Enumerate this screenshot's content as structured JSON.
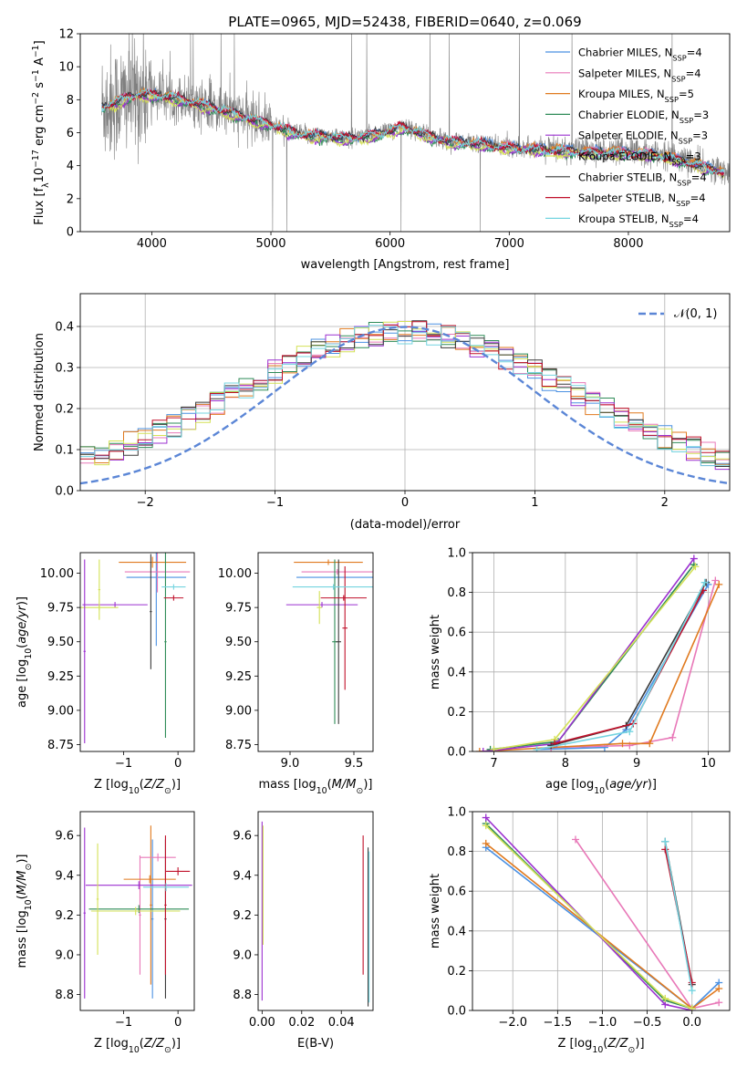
{
  "title": "PLATE=0965, MJD=52438, FIBERID=0640, z=0.069",
  "colors": {
    "Chabrier MILES": "#4a90e2",
    "Salpeter MILES": "#e878b8",
    "Kroupa MILES": "#e07a1f",
    "Chabrier ELODIE": "#2e8b57",
    "Salpeter ELODIE": "#9b30d0",
    "Kroupa ELODIE": "#d4e157",
    "Chabrier STELIB": "#3a3a3a",
    "Salpeter STELIB": "#c0102a",
    "Kroupa STELIB": "#74d4e0"
  },
  "chart_data": [
    {
      "id": "spectrum",
      "type": "line",
      "xlabel": "wavelength [Angstrom, rest frame]",
      "ylabel": "Flux [f_λ10^-17 erg cm^-2 s^-1 A^-1]",
      "xlim": [
        3400,
        8850
      ],
      "ylim": [
        0,
        12
      ],
      "xticks": [
        4000,
        5000,
        6000,
        7000,
        8000
      ],
      "yticks": [
        0,
        2,
        4,
        6,
        8,
        10,
        12
      ],
      "grid": false,
      "legend_position": "top-right",
      "legend": [
        "Chabrier MILES, N_SSP=4",
        "Salpeter MILES, N_SSP=4",
        "Kroupa MILES, N_SSP=5",
        "Chabrier ELODIE, N_SSP=3",
        "Salpeter ELODIE, N_SSP=3",
        "Kroupa ELODIE, N_SSP=3",
        "Chabrier STELIB, N_SSP=4",
        "Salpeter STELIB, N_SSP=4",
        "Kroupa STELIB, N_SSP=4"
      ],
      "data_color": "#808080",
      "data_range": [
        3580,
        8850
      ],
      "model_range": [
        3580,
        8800
      ],
      "continuum": [
        [
          3580,
          7.6
        ],
        [
          3700,
          7.9
        ],
        [
          3800,
          8.2
        ],
        [
          3900,
          8.4
        ],
        [
          4000,
          8.35
        ],
        [
          4100,
          8.3
        ],
        [
          4200,
          8.15
        ],
        [
          4300,
          8.0
        ],
        [
          4400,
          7.8
        ],
        [
          4500,
          7.6
        ],
        [
          4600,
          7.4
        ],
        [
          4700,
          7.2
        ],
        [
          4800,
          6.95
        ],
        [
          4900,
          6.75
        ],
        [
          5000,
          6.55
        ],
        [
          5100,
          6.3
        ],
        [
          5200,
          6.0
        ],
        [
          5300,
          5.9
        ],
        [
          5400,
          5.85
        ],
        [
          5500,
          5.8
        ],
        [
          5600,
          5.7
        ],
        [
          5700,
          5.75
        ],
        [
          5800,
          5.85
        ],
        [
          5900,
          6.0
        ],
        [
          6000,
          6.15
        ],
        [
          6100,
          6.4
        ],
        [
          6200,
          6.2
        ],
        [
          6300,
          5.9
        ],
        [
          6400,
          5.7
        ],
        [
          6500,
          5.55
        ],
        [
          6600,
          5.45
        ],
        [
          6700,
          5.4
        ],
        [
          6800,
          5.35
        ],
        [
          6900,
          5.25
        ],
        [
          7000,
          5.2
        ],
        [
          7200,
          5.1
        ],
        [
          7400,
          5.0
        ],
        [
          7600,
          4.95
        ],
        [
          7800,
          4.9
        ],
        [
          8000,
          4.85
        ],
        [
          8200,
          4.8
        ],
        [
          8400,
          4.5
        ],
        [
          8600,
          4.1
        ],
        [
          8800,
          3.7
        ]
      ]
    },
    {
      "id": "residuals",
      "type": "histogram",
      "xlabel": "(data-model)/error",
      "ylabel": "Normed distribution",
      "xlim": [
        -2.5,
        2.5
      ],
      "ylim": [
        0,
        0.48
      ],
      "xticks": [
        -2,
        -1,
        0,
        1,
        2
      ],
      "yticks": [
        0.0,
        0.1,
        0.2,
        0.3,
        0.4
      ],
      "grid": true,
      "legend_position": "top-right",
      "reference_curve": {
        "label": "N(0,1)",
        "mean": 0,
        "sigma": 1,
        "color": "#5b86d6"
      },
      "bins": 45
    },
    {
      "id": "age_vs_Z",
      "type": "errorbar",
      "xlabel": "Z [log10(Z/Z⊙)]",
      "ylabel": "age  [log10(age/yr)]",
      "xlim": [
        -1.8,
        0.3
      ],
      "ylim": [
        8.7,
        10.15
      ],
      "xticks": [
        -1,
        0
      ],
      "yticks": [
        8.75,
        9.0,
        9.25,
        9.5,
        9.75,
        10.0
      ],
      "grid": false,
      "points": [
        {
          "model": "Chabrier MILES",
          "x": -0.4,
          "xerr": 0.55,
          "y": 9.97,
          "yerr": 0.5
        },
        {
          "model": "Salpeter MILES",
          "x": -0.38,
          "xerr": 0.6,
          "y": 10.01,
          "yerr": 0.15
        },
        {
          "model": "Kroupa MILES",
          "x": -0.47,
          "xerr": 0.62,
          "y": 10.08,
          "yerr": 0.04
        },
        {
          "model": "Chabrier ELODIE",
          "x": -0.23,
          "xerr": 0.02,
          "y": 9.5,
          "yerr": 0.7
        },
        {
          "model": "Salpeter ELODIE",
          "x": -1.16,
          "xerr": 0.6,
          "y": 9.77,
          "yerr": 0.02
        },
        {
          "model": "Kroupa ELODIE",
          "x": -1.45,
          "xerr": 0.35,
          "y": 9.75,
          "yerr": 0.02
        },
        {
          "model": "Chabrier STELIB",
          "x": -0.5,
          "xerr": 0.02,
          "y": 9.72,
          "yerr": 0.42
        },
        {
          "model": "Salpeter STELIB",
          "x": -0.08,
          "xerr": 0.18,
          "y": 9.82,
          "yerr": 0.02
        },
        {
          "model": "Kroupa STELIB",
          "x": -0.08,
          "xerr": 0.22,
          "y": 9.9,
          "yerr": 0.02
        },
        {
          "model": "Salpeter ELODIE",
          "x": -1.72,
          "xerr": 0.02,
          "y": 9.43,
          "yerr": 0.67
        },
        {
          "model": "Kroupa ELODIE",
          "x": -1.45,
          "xerr": 0.02,
          "y": 9.88,
          "yerr": 0.22
        }
      ]
    },
    {
      "id": "age_vs_mass",
      "type": "errorbar",
      "xlabel": "mass [log10(M/M⊙)]",
      "ylabel": "",
      "xlim": [
        8.75,
        9.65
      ],
      "ylim": [
        8.7,
        10.15
      ],
      "xticks": [
        9.0,
        9.5
      ],
      "yticks": [
        8.75,
        9.0,
        9.25,
        9.5,
        9.75,
        10.0
      ],
      "grid": false,
      "points": [
        {
          "model": "Chabrier MILES",
          "x": 9.35,
          "xerr": 0.3,
          "y": 9.97,
          "yerr": 0.02
        },
        {
          "model": "Salpeter MILES",
          "x": 9.37,
          "xerr": 0.28,
          "y": 10.01,
          "yerr": 0.02
        },
        {
          "model": "Kroupa MILES",
          "x": 9.3,
          "xerr": 0.27,
          "y": 10.08,
          "yerr": 0.02
        },
        {
          "model": "Chabrier ELODIE",
          "x": 9.35,
          "xerr": 0.02,
          "y": 9.5,
          "yerr": 0.6
        },
        {
          "model": "Salpeter ELODIE",
          "x": 9.25,
          "xerr": 0.28,
          "y": 9.77,
          "yerr": 0.02
        },
        {
          "model": "Kroupa ELODIE",
          "x": 9.23,
          "xerr": 0.02,
          "y": 9.75,
          "yerr": 0.12
        },
        {
          "model": "Chabrier STELIB",
          "x": 9.38,
          "xerr": 0.02,
          "y": 9.5,
          "yerr": 0.6
        },
        {
          "model": "Salpeter STELIB",
          "x": 9.43,
          "xerr": 0.02,
          "y": 9.6,
          "yerr": 0.45
        },
        {
          "model": "Kroupa STELIB",
          "x": 9.34,
          "xerr": 0.32,
          "y": 9.9,
          "yerr": 0.02
        },
        {
          "model": "Salpeter STELIB",
          "x": 9.42,
          "xerr": 0.18,
          "y": 9.82,
          "yerr": 0.02
        }
      ]
    },
    {
      "id": "weight_vs_age",
      "type": "line",
      "xlabel": "age  [log10(age/yr)]",
      "ylabel": "mass weight",
      "xlim": [
        6.7,
        10.3
      ],
      "ylim": [
        0,
        1.0
      ],
      "xticks": [
        7,
        8,
        9,
        10
      ],
      "yticks": [
        0.0,
        0.2,
        0.4,
        0.6,
        0.8,
        1.0
      ],
      "grid": true,
      "series": [
        {
          "model": "Chabrier MILES",
          "x": [
            7.6,
            8.55,
            8.85,
            10.0
          ],
          "y": [
            0.01,
            0.02,
            0.11,
            0.84
          ]
        },
        {
          "model": "Salpeter MILES",
          "x": [
            7.8,
            8.9,
            9.5,
            10.1
          ],
          "y": [
            0.02,
            0.03,
            0.07,
            0.86
          ]
        },
        {
          "model": "Kroupa MILES",
          "x": [
            6.8,
            8.8,
            9.18,
            10.15
          ],
          "y": [
            0.0,
            0.04,
            0.04,
            0.84
          ]
        },
        {
          "model": "Chabrier ELODIE",
          "x": [
            6.95,
            7.9,
            9.8
          ],
          "y": [
            0.01,
            0.05,
            0.94
          ]
        },
        {
          "model": "Salpeter ELODIE",
          "x": [
            6.85,
            7.88,
            9.8
          ],
          "y": [
            0.0,
            0.04,
            0.97
          ]
        },
        {
          "model": "Kroupa ELODIE",
          "x": [
            7.0,
            7.85,
            9.82
          ],
          "y": [
            0.01,
            0.06,
            0.93
          ]
        },
        {
          "model": "Chabrier STELIB",
          "x": [
            7.8,
            8.85,
            9.97
          ],
          "y": [
            0.03,
            0.13,
            0.85
          ]
        },
        {
          "model": "Salpeter STELIB",
          "x": [
            7.85,
            8.95,
            9.93
          ],
          "y": [
            0.04,
            0.14,
            0.81
          ]
        },
        {
          "model": "Kroupa STELIB",
          "x": [
            7.6,
            8.9,
            9.95
          ],
          "y": [
            0.01,
            0.1,
            0.85
          ]
        }
      ]
    },
    {
      "id": "mass_vs_Z",
      "type": "errorbar",
      "xlabel": "Z [log10(Z/Z⊙)]",
      "ylabel": "mass [log10(M/M⊙)]",
      "xlim": [
        -1.8,
        0.3
      ],
      "ylim": [
        8.72,
        9.72
      ],
      "xticks": [
        -1,
        0
      ],
      "yticks": [
        8.8,
        9.0,
        9.2,
        9.4,
        9.6
      ],
      "grid": false,
      "points": [
        {
          "model": "Chabrier MILES",
          "x": -0.47,
          "xerr": 0.02,
          "y": 9.18,
          "yerr": 0.4
        },
        {
          "model": "Salpeter MILES",
          "x": -0.7,
          "xerr": 0.02,
          "y": 9.2,
          "yerr": 0.3
        },
        {
          "model": "Kroupa MILES",
          "x": -0.5,
          "xerr": 0.02,
          "y": 9.25,
          "yerr": 0.4
        },
        {
          "model": "Salpeter MILES",
          "x": -0.37,
          "xerr": 0.33,
          "y": 9.49,
          "yerr": 0.02
        },
        {
          "model": "Kroupa MILES",
          "x": -0.52,
          "xerr": 0.48,
          "y": 9.38,
          "yerr": 0.02
        },
        {
          "model": "Chabrier ELODIE",
          "x": -0.72,
          "xerr": 0.92,
          "y": 9.23,
          "yerr": 0.02
        },
        {
          "model": "Salpeter ELODIE",
          "x": -1.72,
          "xerr": 0.02,
          "y": 9.21,
          "yerr": 0.43
        },
        {
          "model": "Salpeter ELODIE",
          "x": -0.72,
          "xerr": 0.98,
          "y": 9.35,
          "yerr": 0.02
        },
        {
          "model": "Kroupa ELODIE",
          "x": -1.48,
          "xerr": 0.02,
          "y": 9.28,
          "yerr": 0.28
        },
        {
          "model": "Kroupa ELODIE",
          "x": -0.78,
          "xerr": 0.82,
          "y": 9.22,
          "yerr": 0.02
        },
        {
          "model": "Chabrier STELIB",
          "x": -0.23,
          "xerr": 0.02,
          "y": 9.18,
          "yerr": 0.4
        },
        {
          "model": "Salpeter STELIB",
          "x": -0.23,
          "xerr": 0.02,
          "y": 9.25,
          "yerr": 0.35
        },
        {
          "model": "Salpeter STELIB",
          "x": 0.0,
          "xerr": 0.22,
          "y": 9.42,
          "yerr": 0.02
        },
        {
          "model": "Kroupa STELIB",
          "x": -0.22,
          "xerr": 0.42,
          "y": 9.34,
          "yerr": 0.02
        }
      ]
    },
    {
      "id": "mass_vs_ebv",
      "type": "errorbar",
      "xlabel": "E(B-V)",
      "ylabel": "",
      "xlim": [
        -0.002,
        0.056
      ],
      "ylim": [
        8.72,
        9.72
      ],
      "xticks": [
        0.0,
        0.02,
        0.04
      ],
      "yticks": [
        8.8,
        9.0,
        9.2,
        9.4,
        9.6
      ],
      "grid": false,
      "points": [
        {
          "model": "Salpeter ELODIE",
          "x": 0.0,
          "xerr": 0.0,
          "y": 9.22,
          "yerr": 0.45
        },
        {
          "model": "Kroupa ELODIE",
          "x": 0.0005,
          "xerr": 0.0,
          "y": 9.35,
          "yerr": 0.3
        },
        {
          "model": "Salpeter STELIB",
          "x": 0.051,
          "xerr": 0.0,
          "y": 9.25,
          "yerr": 0.35
        },
        {
          "model": "Chabrier STELIB",
          "x": 0.0535,
          "xerr": 0.0,
          "y": 9.14,
          "yerr": 0.4
        },
        {
          "model": "Kroupa STELIB",
          "x": 0.054,
          "xerr": 0.0,
          "y": 9.14,
          "yerr": 0.38
        }
      ]
    },
    {
      "id": "weight_vs_Z",
      "type": "line",
      "xlabel": "Z [log10(Z/Z⊙)]",
      "ylabel": "mass weight",
      "xlim": [
        -2.45,
        0.42
      ],
      "ylim": [
        0,
        1.0
      ],
      "xticks": [
        -2.0,
        -1.5,
        -1.0,
        -0.5,
        0.0
      ],
      "yticks": [
        0.0,
        0.2,
        0.4,
        0.6,
        0.8,
        1.0
      ],
      "grid": true,
      "series": [
        {
          "model": "Chabrier MILES",
          "x": [
            -2.3,
            0.0,
            0.3
          ],
          "y": [
            0.82,
            0.01,
            0.14
          ]
        },
        {
          "model": "Salpeter MILES",
          "x": [
            -1.3,
            0.0,
            0.3
          ],
          "y": [
            0.86,
            0.01,
            0.04
          ]
        },
        {
          "model": "Kroupa MILES",
          "x": [
            -2.3,
            0.0,
            0.3
          ],
          "y": [
            0.84,
            0.01,
            0.11
          ]
        },
        {
          "model": "Chabrier ELODIE",
          "x": [
            -2.3,
            -0.3,
            0.0
          ],
          "y": [
            0.94,
            0.05,
            0.01
          ]
        },
        {
          "model": "Salpeter ELODIE",
          "x": [
            -2.3,
            -0.3,
            0.0
          ],
          "y": [
            0.97,
            0.03,
            0.0
          ]
        },
        {
          "model": "Kroupa ELODIE",
          "x": [
            -2.3,
            -0.3,
            0.0
          ],
          "y": [
            0.93,
            0.06,
            0.01
          ]
        },
        {
          "model": "Chabrier STELIB",
          "x": [
            -0.3,
            0.0
          ],
          "y": [
            0.85,
            0.13
          ]
        },
        {
          "model": "Salpeter STELIB",
          "x": [
            -0.3,
            0.0
          ],
          "y": [
            0.81,
            0.14
          ]
        },
        {
          "model": "Kroupa STELIB",
          "x": [
            -0.3,
            0.0
          ],
          "y": [
            0.85,
            0.1
          ]
        }
      ]
    }
  ]
}
